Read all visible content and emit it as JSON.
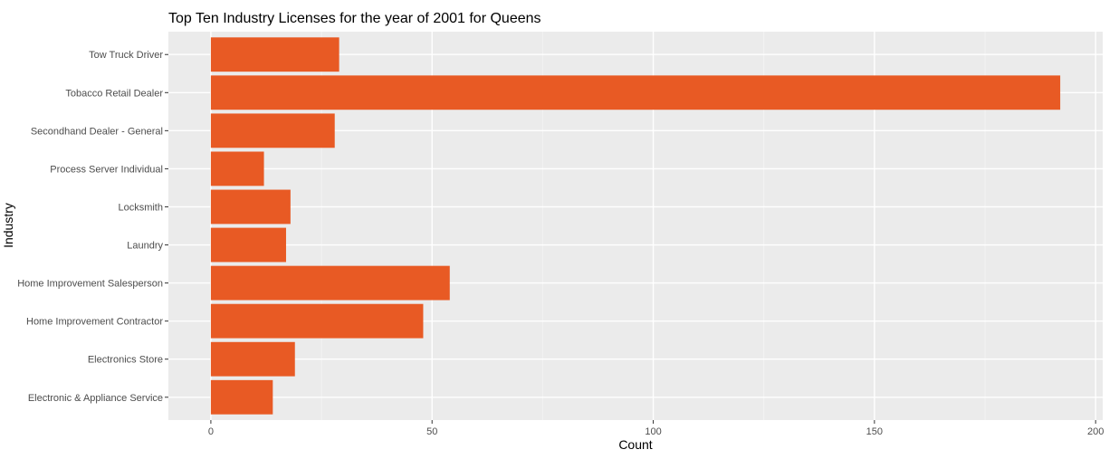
{
  "chart_data": {
    "type": "bar",
    "orientation": "horizontal",
    "title": "Top Ten Industry Licenses for the year of 2001 for Queens",
    "xlabel": "Count",
    "ylabel": "Industry",
    "categories": [
      "Electronic & Appliance Service",
      "Electronics Store",
      "Home Improvement Contractor",
      "Home Improvement Salesperson",
      "Laundry",
      "Locksmith",
      "Process Server Individual",
      "Secondhand Dealer - General",
      "Tobacco Retail Dealer",
      "Tow Truck Driver"
    ],
    "values": [
      14,
      19,
      48,
      54,
      17,
      18,
      12,
      28,
      192,
      29
    ],
    "xlim": [
      -9.6,
      201.6
    ],
    "xticks": [
      0,
      50,
      100,
      150,
      200
    ],
    "grid": true,
    "legend": "none",
    "colors": {
      "bar": "#E85A24",
      "panel": "#EBEBEB",
      "grid_major": "#FFFFFF",
      "text": "#000000",
      "tick_text": "#4D4D4D"
    }
  }
}
